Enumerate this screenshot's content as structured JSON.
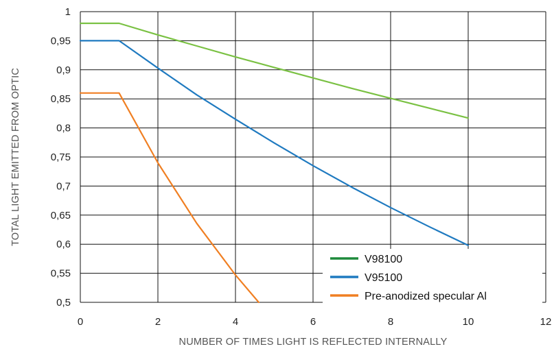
{
  "chart_data": {
    "type": "line",
    "xlabel": "NUMBER OF TIMES LIGHT IS REFLECTED INTERNALLY",
    "ylabel": "TOTAL LIGHT EMITTED FROM OPTIC",
    "xlim": [
      0,
      12
    ],
    "ylim": [
      0.5,
      1
    ],
    "x_ticks": [
      "0",
      "2",
      "4",
      "6",
      "8",
      "10",
      "12"
    ],
    "y_ticks": [
      "0,5",
      "0,55",
      "0,6",
      "0,65",
      "0,7",
      "0,75",
      "0,8",
      "0,85",
      "0,9",
      "0,95",
      "1"
    ],
    "grid": true,
    "legend_position": "bottom-right",
    "series": [
      {
        "name": "V98100",
        "color": "#7ac143",
        "legend_color": "#1e8a3c",
        "x": [
          0,
          1,
          2,
          3,
          4,
          5,
          6,
          7,
          8,
          9,
          10
        ],
        "y": [
          0.98,
          0.98,
          0.96,
          0.941,
          0.922,
          0.904,
          0.886,
          0.868,
          0.851,
          0.834,
          0.817
        ]
      },
      {
        "name": "V95100",
        "color": "#1f7ac0",
        "legend_color": "#1f7ac0",
        "x": [
          0,
          1,
          2,
          3,
          4,
          5,
          6,
          7,
          8,
          9,
          10
        ],
        "y": [
          0.95,
          0.95,
          0.903,
          0.857,
          0.815,
          0.774,
          0.735,
          0.698,
          0.663,
          0.63,
          0.598
        ]
      },
      {
        "name": "Pre-anodized specular Al",
        "color": "#f07f22",
        "legend_color": "#f07f22",
        "x": [
          0,
          1,
          2,
          3,
          4,
          4.6
        ],
        "y": [
          0.86,
          0.86,
          0.74,
          0.636,
          0.547,
          0.5
        ]
      }
    ]
  }
}
